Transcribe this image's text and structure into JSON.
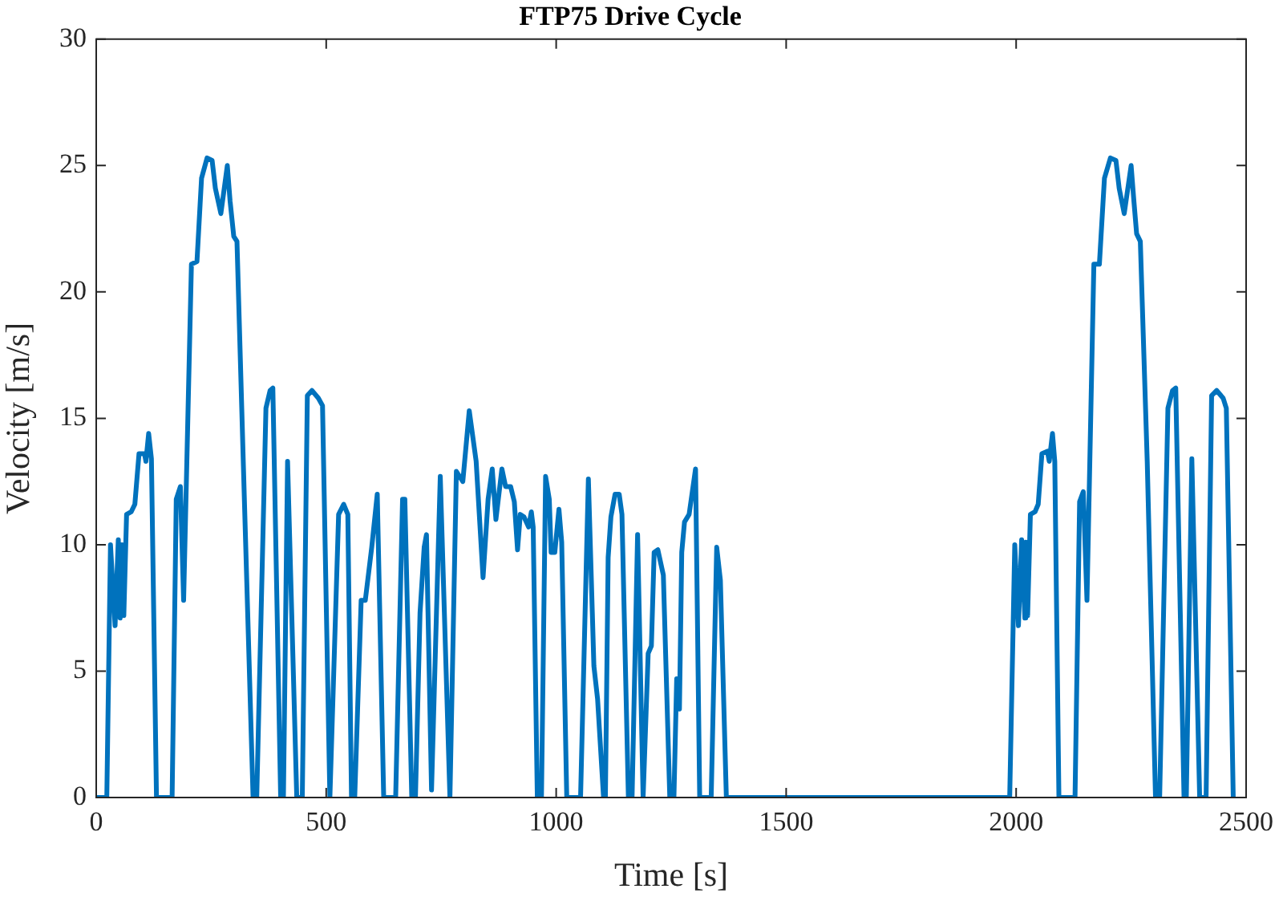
{
  "chart_data": {
    "type": "line",
    "title": "FTP75 Drive Cycle",
    "xlabel": "Time [s]",
    "ylabel": "Velocity [m/s]",
    "x": [
      0,
      23,
      31,
      41,
      48,
      52,
      56,
      60,
      66,
      76,
      84,
      93,
      105,
      108,
      114,
      120,
      131,
      165,
      174,
      183,
      190,
      207,
      219,
      229,
      241,
      252,
      259,
      271,
      285,
      291,
      299,
      306,
      320,
      341,
      349,
      369,
      378,
      384,
      401,
      407,
      416,
      436,
      448,
      459,
      469,
      483,
      492,
      508,
      527,
      538,
      547,
      555,
      562,
      576,
      585,
      599,
      611,
      625,
      651,
      666,
      671,
      686,
      694,
      704,
      713,
      718,
      729,
      748,
      769,
      783,
      797,
      811,
      826,
      841,
      852,
      861,
      869,
      882,
      890,
      901,
      909,
      916,
      922,
      930,
      940,
      946,
      950,
      959,
      968,
      977,
      985,
      989,
      997,
      1006,
      1012,
      1023,
      1053,
      1070,
      1082,
      1090,
      1103,
      1107,
      1113,
      1119,
      1128,
      1137,
      1143,
      1157,
      1165,
      1177,
      1189,
      1200,
      1207,
      1213,
      1221,
      1233,
      1247,
      1256,
      1262,
      1268,
      1273,
      1279,
      1289,
      1303,
      1312,
      1337,
      1349,
      1357,
      1370,
      1986,
      1997,
      2005,
      2012,
      2019,
      2021,
      2025,
      2031,
      2041,
      2048,
      2056,
      2068,
      2072,
      2079,
      2084,
      2093,
      2128,
      2138,
      2146,
      2154,
      2169,
      2181,
      2192,
      2205,
      2217,
      2224,
      2235,
      2250,
      2256,
      2262,
      2270,
      2285,
      2303,
      2312,
      2330,
      2340,
      2347,
      2365,
      2370,
      2382,
      2399,
      2413,
      2425,
      2436,
      2450,
      2457,
      2472,
      2477
    ],
    "series": [
      {
        "color": "#0072bd",
        "values": [
          0,
          0,
          10,
          6.8,
          10.2,
          7.1,
          10,
          7.2,
          11.2,
          11.3,
          11.6,
          13.6,
          13.6,
          13.3,
          14.4,
          13.4,
          0,
          0,
          11.8,
          12.3,
          7.8,
          21.1,
          21.2,
          24.5,
          25.3,
          25.2,
          24.1,
          23.1,
          25.0,
          23.6,
          22.2,
          22.0,
          13.1,
          0,
          0,
          15.4,
          16.1,
          16.2,
          0,
          0,
          13.3,
          0,
          0,
          15.9,
          16.1,
          15.8,
          15.5,
          0,
          11.2,
          11.6,
          11.2,
          0,
          0,
          7.8,
          7.8,
          9.9,
          12,
          0,
          0,
          11.8,
          11.8,
          0,
          0,
          7.3,
          9.9,
          10.4,
          0.3,
          12.7,
          0,
          12.9,
          12.5,
          15.3,
          13.3,
          8.7,
          11.8,
          13.0,
          11.0,
          13.0,
          12.3,
          12.3,
          11.7,
          9.8,
          11.2,
          11.1,
          10.7,
          11.3,
          10.7,
          0,
          0,
          12.7,
          11.8,
          9.7,
          9.7,
          11.4,
          10.1,
          0,
          0,
          12.6,
          5.2,
          3.9,
          0,
          0,
          9.5,
          11.1,
          12.0,
          12.0,
          11.2,
          0,
          0,
          10.4,
          0,
          5.7,
          6.0,
          9.7,
          9.8,
          8.8,
          0,
          0,
          4.7,
          3.5,
          9.7,
          10.9,
          11.2,
          13.0,
          0,
          0,
          9.9,
          8.6,
          0,
          0,
          10,
          6.8,
          10.2,
          7.1,
          10.1,
          7.2,
          11.2,
          11.3,
          11.6,
          13.6,
          13.7,
          13.3,
          14.4,
          13.3,
          0,
          0,
          11.7,
          12.1,
          7.8,
          21.1,
          21.1,
          24.5,
          25.3,
          25.2,
          24.1,
          23.1,
          25.0,
          23.6,
          22.3,
          22.0,
          13.3,
          0,
          0,
          15.4,
          16.1,
          16.2,
          0,
          0,
          13.4,
          0,
          0,
          15.9,
          16.1,
          15.8,
          15.4,
          0,
          0
        ]
      }
    ],
    "xlim": [
      0,
      2500
    ],
    "xticks": [
      0,
      500,
      1000,
      1500,
      2000,
      2500
    ],
    "ylim": [
      0,
      30
    ],
    "yticks": [
      0,
      5,
      10,
      15,
      20,
      25,
      30
    ],
    "grid": false,
    "legend": false,
    "marker": "none",
    "line_style": "solid"
  }
}
